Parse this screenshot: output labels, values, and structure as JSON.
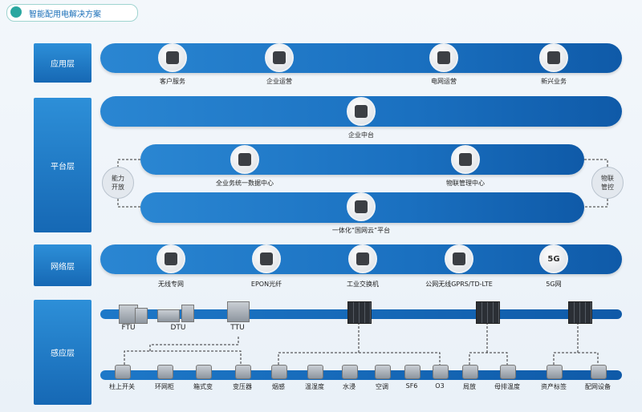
{
  "header": {
    "title": "智能配用电解决方案"
  },
  "layers": {
    "application": {
      "label": "应用层",
      "items": [
        "客户服务",
        "企业运营",
        "电网运营",
        "新兴业务"
      ]
    },
    "platform": {
      "label": "平台层",
      "top": "企业中台",
      "middle": [
        "全业务统一数据中心",
        "物联管理中心"
      ],
      "bottom": "一体化“国网云”平台",
      "left_side": "能力开放",
      "right_side": "物联管控"
    },
    "network": {
      "label": "网络层",
      "items": [
        "无线专网",
        "EPON光纤",
        "工业交换机",
        "公网无线GPRS/TD-LTE",
        "5G网"
      ],
      "icon_text": "5G"
    },
    "sensing": {
      "label": "感应层",
      "top_items": [
        "FTU",
        "DTU",
        "TTU"
      ],
      "bottom_items": [
        "柱上开关",
        "环网柜",
        "箱式变",
        "变压器",
        "烟感",
        "温湿度",
        "水浸",
        "空调",
        "SF6",
        "O3",
        "局放",
        "母排温度",
        "资产标签",
        "配网设备"
      ]
    }
  }
}
